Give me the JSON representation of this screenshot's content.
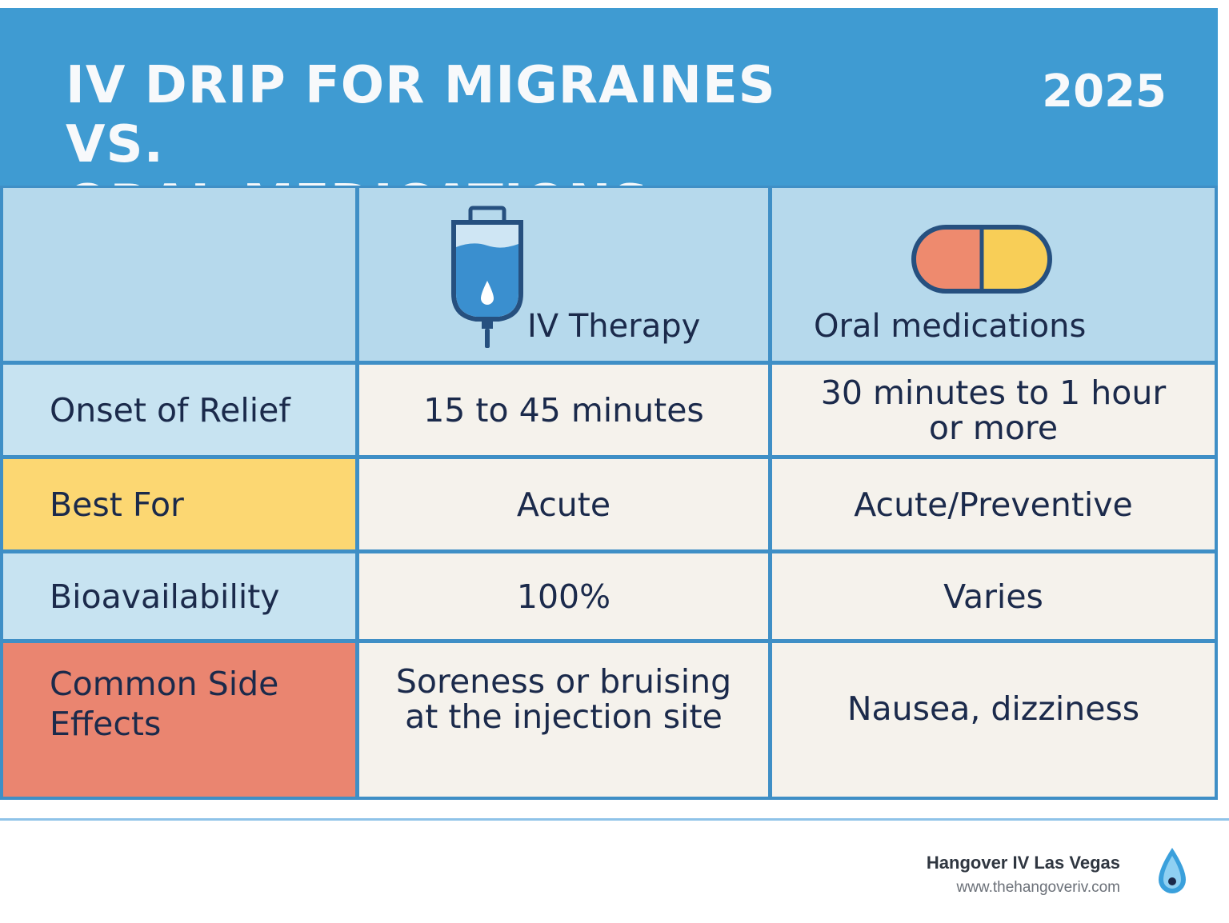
{
  "header": {
    "title_line1": "IV DRIP FOR MIGRAINES VS.",
    "title_line2": "ORAL MEDICATIONS",
    "year": "2025"
  },
  "columns": {
    "iv": {
      "label": "IV Therapy",
      "icon": "iv-bag-icon"
    },
    "oral": {
      "label": "Oral medications",
      "icon": "pill-capsule-icon"
    }
  },
  "rows": [
    {
      "label": "Onset of Relief",
      "iv": "15 to 45 minutes",
      "oral_line1": "30 minutes to 1 hour",
      "oral_line2": "or more"
    },
    {
      "label": "Best For",
      "iv": "Acute",
      "oral": "Acute/Preventive"
    },
    {
      "label": "Bioavailability",
      "iv": "100%",
      "oral": "Varies"
    },
    {
      "label_line1": "Common Side",
      "label_line2": "Effects",
      "iv_line1": "Soreness or bruising",
      "iv_line2": "at the injection site",
      "oral": "Nausea, dizziness"
    }
  ],
  "footer": {
    "brand": "Hangover IV Las Vegas",
    "url": "www.thehangoveriv.com",
    "logo_icon": "water-drop-icon"
  },
  "colors": {
    "header": "#3f9bd2",
    "grid_lines": "#3f8fc6",
    "header_row": "#b6d9ec",
    "label_light_blue": "#c7e3f1",
    "label_yellow": "#fcd772",
    "label_coral": "#ea8570",
    "value_cells": "#f5f2ec",
    "text": "#1b2a4b"
  }
}
